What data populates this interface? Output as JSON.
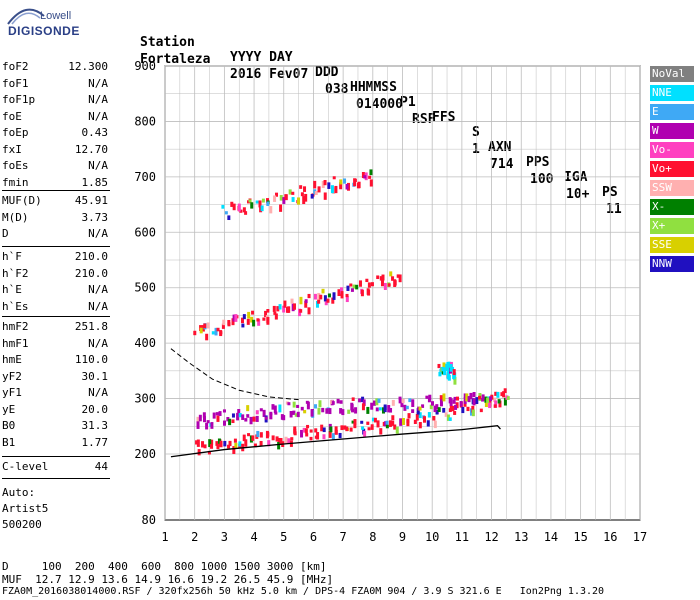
{
  "logo": {
    "company": "Lowell",
    "product": "DIGISONDE"
  },
  "header": {
    "row1": [
      "Station",
      "YYYY DAY",
      "DDD",
      "HHMMSS",
      "P1",
      "FFS",
      "S",
      "AXN",
      "PPS",
      "IGA",
      "PS"
    ],
    "row2": [
      "Fortaleza",
      "2016 Fev07",
      "038",
      "014000",
      "RSF",
      "",
      "1",
      "714",
      "100",
      "10+",
      "11"
    ]
  },
  "params_group1": [
    {
      "name": "foF2",
      "value": "12.300"
    },
    {
      "name": "foF1",
      "value": "N/A"
    },
    {
      "name": "foF1p",
      "value": "N/A"
    },
    {
      "name": "foE",
      "value": "N/A"
    },
    {
      "name": "foEp",
      "value": "0.43"
    },
    {
      "name": "fxI",
      "value": "12.70"
    },
    {
      "name": "foEs",
      "value": "N/A"
    },
    {
      "name": "fmin",
      "value": "1.85"
    }
  ],
  "params_group2": [
    {
      "name": "MUF(D)",
      "value": "45.91"
    },
    {
      "name": "M(D)",
      "value": "3.73"
    },
    {
      "name": "D",
      "value": "N/A"
    }
  ],
  "params_group3": [
    {
      "name": "h`F",
      "value": "210.0"
    },
    {
      "name": "h`F2",
      "value": "210.0"
    },
    {
      "name": "h`E",
      "value": "N/A"
    },
    {
      "name": "h`Es",
      "value": "N/A"
    }
  ],
  "params_group4": [
    {
      "name": "hmF2",
      "value": "251.8"
    },
    {
      "name": "hmF1",
      "value": "N/A"
    },
    {
      "name": "hmE",
      "value": "110.0"
    },
    {
      "name": "yF2",
      "value": "30.1"
    },
    {
      "name": "yF1",
      "value": "N/A"
    },
    {
      "name": "yE",
      "value": "20.0"
    },
    {
      "name": "B0",
      "value": "31.3"
    },
    {
      "name": "B1",
      "value": "1.77"
    }
  ],
  "params_group5": [
    {
      "name": "C-level",
      "value": "44"
    }
  ],
  "auto": {
    "line1": "Auto:",
    "line2": "Artist5",
    "line3": "500200"
  },
  "legend": [
    {
      "label": "NoVal",
      "color": "#808080"
    },
    {
      "label": "NNE",
      "color": "#00e0ff"
    },
    {
      "label": "E",
      "color": "#3fa9f5"
    },
    {
      "label": "W",
      "color": "#b000b0"
    },
    {
      "label": "Vo-",
      "color": "#ff40c0"
    },
    {
      "label": "Vo+",
      "color": "#ff1030"
    },
    {
      "label": "SSW",
      "color": "#ffb0b0"
    },
    {
      "label": "X-",
      "color": "#008000"
    },
    {
      "label": "X+",
      "color": "#90e040"
    },
    {
      "label": "SSE",
      "color": "#d8d000"
    },
    {
      "label": "NNW",
      "color": "#2010c0"
    }
  ],
  "footer": {
    "line1": "D     100  200  400  600  800 1000 1500 3000 [km]",
    "line2": "MUF  12.7 12.9 13.6 14.9 16.6 19.2 26.5 45.9 [MHz]",
    "line3": "FZA0M_2016038014000.RSF / 320fx256h 50 kHz 5.0 km / DPS-4 FZA0M 904 / 3.9 S 321.6 E   Ion2Png 1.3.20"
  },
  "chart_data": {
    "type": "scatter",
    "x_ticks": [
      "1",
      "2",
      "3",
      "4",
      "5",
      "6",
      "7",
      "8",
      "9",
      "10",
      "11",
      "12",
      "13",
      "14",
      "15",
      "16",
      "17"
    ],
    "y_ticks": [
      "80",
      "200",
      "300",
      "400",
      "500",
      "600",
      "700",
      "800",
      "900"
    ],
    "xlim": [
      1,
      17
    ],
    "ylim": [
      80,
      900
    ],
    "grid": true,
    "legend_position": "right",
    "echo_traces": [
      {
        "name": "Vo+",
        "x": [
          2.0,
          3.0,
          4.0,
          5.0,
          6.0,
          7.0,
          8.0,
          9.0,
          10.0,
          11.0,
          12.0,
          12.5
        ],
        "y": [
          215,
          222,
          228,
          235,
          242,
          248,
          255,
          262,
          272,
          285,
          298,
          310
        ]
      },
      {
        "name": "W",
        "x": [
          2.0,
          3.0,
          4.0,
          5.0,
          6.0,
          7.0,
          8.0,
          9.0,
          10.0,
          11.0,
          12.0
        ],
        "y": [
          265,
          272,
          278,
          283,
          290,
          292,
          290,
          292,
          295,
          300,
          305
        ]
      },
      {
        "name": "Vo+",
        "x": [
          2.0,
          3.0,
          4.0,
          5.0,
          6.0,
          7.0,
          8.0,
          9.0
        ],
        "y": [
          422,
          435,
          450,
          465,
          480,
          495,
          510,
          525
        ]
      },
      {
        "name": "Vo+",
        "x": [
          3.0,
          4.0,
          5.0,
          6.0,
          7.0,
          8.0
        ],
        "y": [
          640,
          652,
          665,
          680,
          692,
          708
        ]
      },
      {
        "name": "NNE",
        "x": [
          10.2,
          10.5,
          10.8
        ],
        "y": [
          360,
          355,
          350
        ]
      }
    ],
    "profile_curve": {
      "x": [
        1.2,
        3.0,
        5.0,
        7.0,
        9.0,
        11.0,
        12.2,
        12.3
      ],
      "y": [
        195,
        208,
        218,
        227,
        236,
        244,
        251,
        245
      ]
    },
    "dashed_curve": {
      "x": [
        1.2,
        1.8,
        2.6,
        3.5,
        4.5,
        5.5
      ],
      "y": [
        390,
        365,
        335,
        315,
        303,
        298
      ]
    }
  }
}
